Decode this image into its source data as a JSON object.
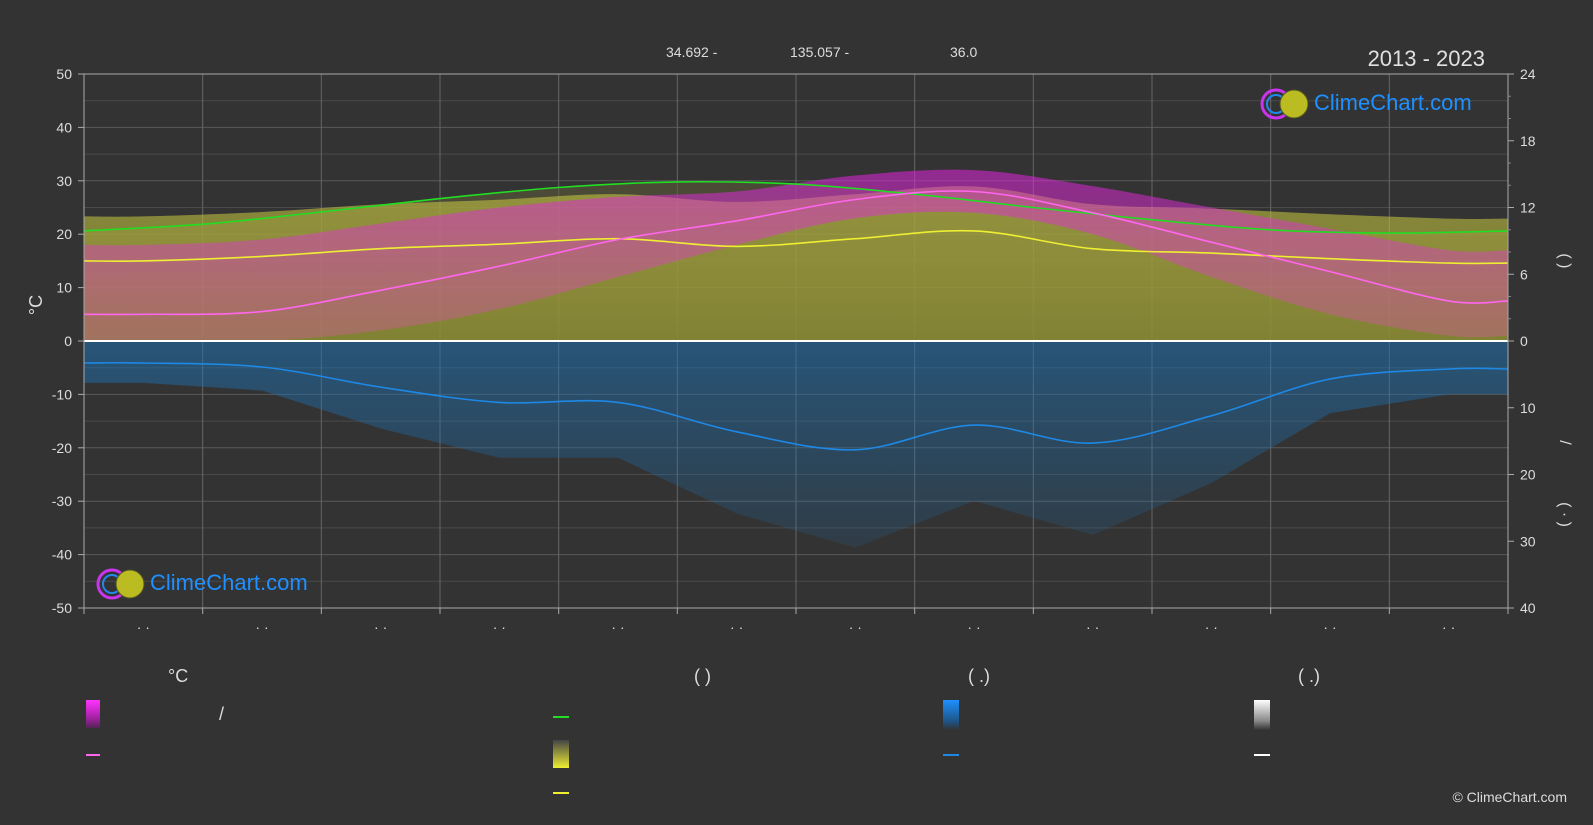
{
  "header": {
    "latitude": "34.692 -",
    "longitude": "135.057 -",
    "elevation": "36.0",
    "years": "2013 - 2023"
  },
  "logo_text": "ClimeChart.com",
  "copyright": "© ClimeChart.com",
  "legend": {
    "temp_title": "°C",
    "daylight_title": "(          )",
    "rain_title": "(    .)",
    "snow_title": "(    .)",
    "slash": "/"
  },
  "colors": {
    "background": "#333333",
    "daylight": "#22dd22",
    "sunshine": "#eeee33",
    "temperature": "#ff66ee",
    "temp_range": "#ee22ee",
    "rain": "#1e88e5",
    "snow": "#ffffff",
    "zero_line": "#ffffff"
  },
  "chart_data": {
    "type": "line",
    "months": [
      "· ·",
      "· ·",
      "· ·",
      "· ·",
      "· ·",
      "· ·",
      "· ·",
      "· ·",
      "· ·",
      "· ·",
      "· ·",
      "· ·"
    ],
    "y_left": {
      "label": "°C",
      "range": [
        -50,
        50
      ],
      "ticks": [
        50,
        40,
        30,
        20,
        10,
        0,
        -10,
        -20,
        -30,
        -40,
        -50
      ]
    },
    "y_right_top": {
      "range": [
        0,
        24
      ],
      "ticks": [
        24,
        18,
        12,
        6,
        0
      ]
    },
    "y_right_bottom": {
      "range": [
        0,
        40
      ],
      "ticks": [
        0,
        10,
        20,
        30,
        40
      ]
    },
    "right_labels": [
      "(    )",
      "/",
      "(  ·   )"
    ],
    "series": [
      {
        "key": "daylight",
        "axis": "hours",
        "x": [
          0,
          1,
          2,
          3,
          4,
          5,
          6,
          7,
          8,
          9,
          10,
          11,
          12
        ],
        "values": [
          9.9,
          10.5,
          11.6,
          12.8,
          13.8,
          14.3,
          14.1,
          13.2,
          12.0,
          10.9,
          10.0,
          9.7,
          9.9
        ]
      },
      {
        "key": "sunshine",
        "axis": "hours",
        "x": [
          0,
          0.5,
          1.5,
          2.5,
          3.5,
          4.5,
          5.5,
          6.5,
          7.5,
          8.5,
          9.5,
          10.5,
          11.5,
          12
        ],
        "values": [
          7.2,
          7.2,
          7.6,
          8.3,
          8.7,
          9.2,
          8.5,
          9.2,
          9.9,
          8.3,
          7.9,
          7.4,
          7.0,
          7.0
        ]
      },
      {
        "key": "temperature",
        "axis": "celsius",
        "x": [
          0,
          0.5,
          1.5,
          2.5,
          3.5,
          4.5,
          5.5,
          6.5,
          7.5,
          8.5,
          9.5,
          10.5,
          11.5,
          12
        ],
        "values": [
          5.0,
          5.0,
          5.5,
          9.5,
          14.0,
          19.0,
          22.5,
          26.5,
          28.0,
          24.0,
          18.5,
          13.0,
          7.5,
          7.5
        ]
      },
      {
        "key": "rain",
        "axis": "mm",
        "x": [
          0,
          0.5,
          1.5,
          2.5,
          3.5,
          4.5,
          5.5,
          6.5,
          7.5,
          8.5,
          9.5,
          10.5,
          11.5,
          12
        ],
        "values": [
          3.3,
          3.3,
          3.9,
          6.9,
          9.2,
          9.2,
          13.6,
          16.3,
          12.6,
          15.3,
          11.2,
          5.7,
          4.2,
          4.2
        ]
      }
    ],
    "temp_range": {
      "x": [
        0,
        0.5,
        1.5,
        2.5,
        3.5,
        4.5,
        5.5,
        6.5,
        7.5,
        8.5,
        9.5,
        10.5,
        11.5,
        12
      ],
      "max": [
        18,
        18,
        19,
        22,
        25,
        27,
        28,
        31,
        32,
        29,
        25,
        21,
        17,
        17
      ],
      "min": [
        0,
        0,
        0,
        2,
        6,
        12,
        18,
        23,
        24,
        20,
        12,
        5,
        1,
        1
      ]
    }
  }
}
